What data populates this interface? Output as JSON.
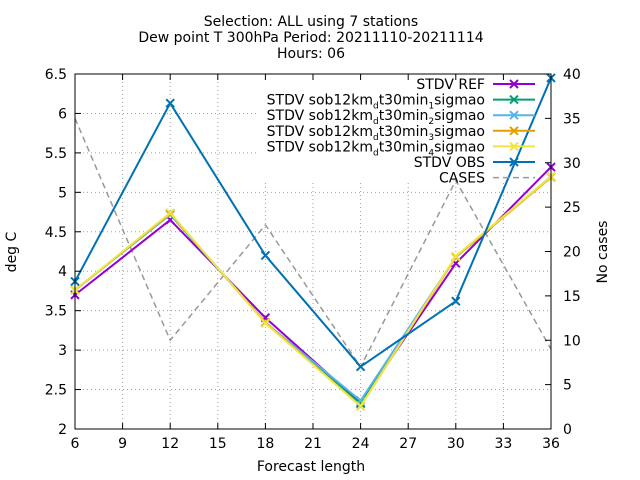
{
  "chart_data": {
    "type": "line",
    "title_lines": [
      "Selection: ALL using     7 stations",
      "Dew point T 300hPa   Period: 20211110-20211114",
      "Hours: 06"
    ],
    "xlabel": "Forecast length",
    "ylabel": "deg C",
    "y2label": "No cases",
    "x": [
      6,
      12,
      18,
      24,
      30,
      36
    ],
    "xticks": [
      6,
      9,
      12,
      15,
      18,
      21,
      24,
      27,
      30,
      33,
      36
    ],
    "xlim": [
      6,
      36
    ],
    "ylim": [
      2,
      6.5
    ],
    "yticks": [
      2,
      2.5,
      3,
      3.5,
      4,
      4.5,
      5,
      5.5,
      6,
      6.5
    ],
    "ytick_labels": [
      "2",
      "2.5",
      "3",
      "3.5",
      "4",
      "4.5",
      "5",
      "5.5",
      "6",
      "6.5"
    ],
    "y2lim": [
      0,
      40
    ],
    "y2ticks": [
      0,
      5,
      10,
      15,
      20,
      25,
      30,
      35,
      40
    ],
    "grid": true,
    "legend_position": "top-right",
    "series": [
      {
        "name": "STDV REF",
        "legend": [
          {
            "t": "STDV REF"
          }
        ],
        "color": "#9400d3",
        "axis": "y",
        "dash": false,
        "marker": "x",
        "values": [
          3.7,
          4.65,
          3.41,
          2.33,
          4.1,
          5.32
        ]
      },
      {
        "name": "STDV sob12km_dt30min_1sigmao",
        "legend": [
          {
            "t": "STDV sob12km"
          },
          {
            "t": "d",
            "sub": true
          },
          {
            "t": "t30min"
          },
          {
            "t": "1",
            "sub": true
          },
          {
            "t": "sigmao"
          }
        ],
        "color": "#009e73",
        "axis": "y",
        "dash": false,
        "marker": "x",
        "values": [
          3.76,
          4.72,
          3.35,
          2.32,
          4.18,
          5.2
        ]
      },
      {
        "name": "STDV sob12km_dt30min_2sigmao",
        "legend": [
          {
            "t": "STDV sob12km"
          },
          {
            "t": "d",
            "sub": true
          },
          {
            "t": "t30min"
          },
          {
            "t": "2",
            "sub": true
          },
          {
            "t": "sigmao"
          }
        ],
        "color": "#56b4e9",
        "axis": "y",
        "dash": false,
        "marker": "x",
        "values": [
          3.76,
          4.72,
          3.35,
          2.36,
          4.18,
          5.2
        ]
      },
      {
        "name": "STDV sob12km_dt30min_3sigmao",
        "legend": [
          {
            "t": "STDV sob12km"
          },
          {
            "t": "d",
            "sub": true
          },
          {
            "t": "t30min"
          },
          {
            "t": "3",
            "sub": true
          },
          {
            "t": "sigmao"
          }
        ],
        "color": "#e69f00",
        "axis": "y",
        "dash": false,
        "marker": "x",
        "values": [
          3.76,
          4.73,
          3.35,
          2.29,
          4.18,
          5.19
        ]
      },
      {
        "name": "STDV sob12km_dt30min_4sigmao",
        "legend": [
          {
            "t": "STDV sob12km"
          },
          {
            "t": "d",
            "sub": true
          },
          {
            "t": "t30min"
          },
          {
            "t": "4",
            "sub": true
          },
          {
            "t": "sigmao"
          }
        ],
        "color": "#f0e442",
        "axis": "y",
        "dash": false,
        "marker": "x",
        "values": [
          3.76,
          4.74,
          3.34,
          2.29,
          4.19,
          5.2
        ]
      },
      {
        "name": "STDV OBS",
        "legend": [
          {
            "t": "STDV OBS"
          }
        ],
        "color": "#0072b2",
        "axis": "y",
        "dash": false,
        "marker": "x",
        "values": [
          3.87,
          6.13,
          4.2,
          2.79,
          3.62,
          6.45
        ]
      },
      {
        "name": "CASES",
        "legend": [
          {
            "t": "CASES"
          }
        ],
        "color": "#999999",
        "axis": "y2",
        "dash": true,
        "marker": "none",
        "values": [
          35,
          10,
          23,
          7,
          28,
          9
        ]
      }
    ]
  }
}
